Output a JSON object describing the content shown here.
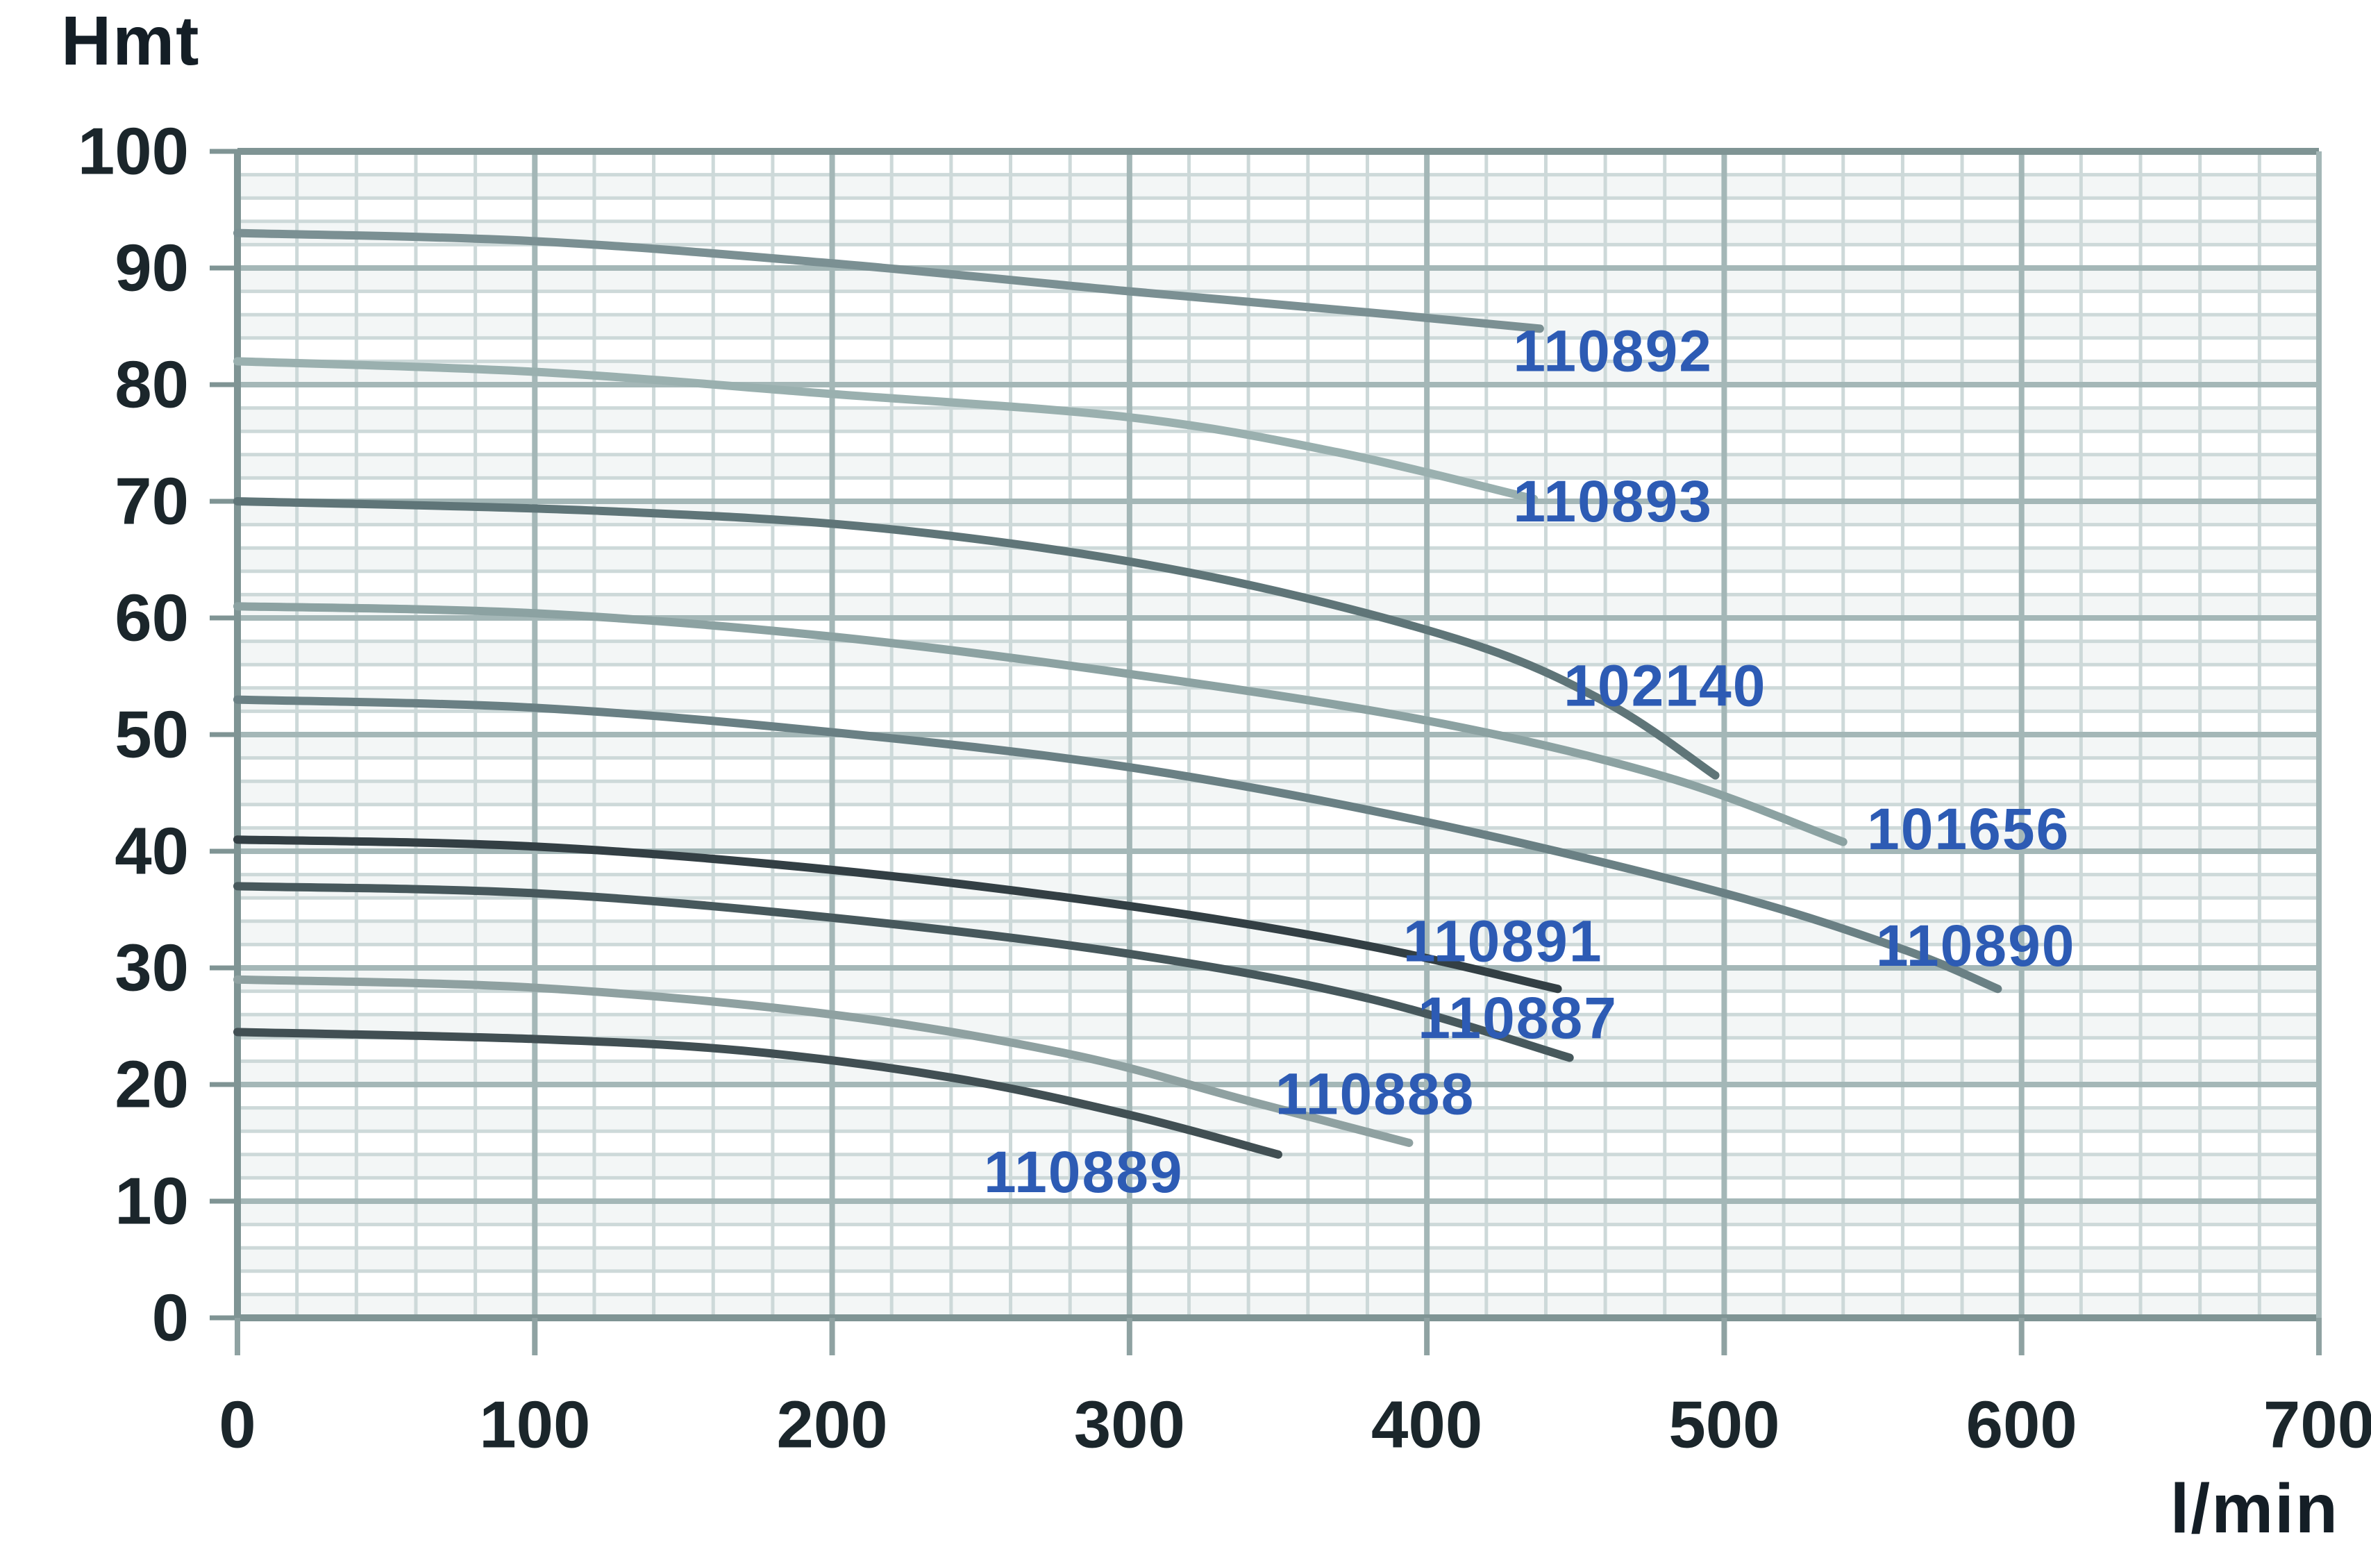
{
  "chart_data": {
    "type": "line",
    "title": "",
    "ylabel": "Hmt",
    "xlabel": "l/min",
    "x_range": [
      0,
      700
    ],
    "y_range": [
      0,
      100
    ],
    "x_ticks": [
      0,
      100,
      200,
      300,
      400,
      500,
      600,
      700
    ],
    "y_ticks": [
      0,
      10,
      20,
      30,
      40,
      50,
      60,
      70,
      80,
      90,
      100
    ],
    "x_minor_step": 20,
    "y_minor_step": 2,
    "grid": "on",
    "legend_position": "inline-labels-on-curves",
    "label_color": "#2d5bb4",
    "series": [
      {
        "name": "110892",
        "color": "#7b9093",
        "points": [
          [
            0,
            93
          ],
          [
            100,
            92.3
          ],
          [
            200,
            90.4
          ],
          [
            300,
            88.0
          ],
          [
            380,
            86.2
          ],
          [
            438,
            84.8
          ]
        ],
        "label_pos": [
          429,
          82.9
        ]
      },
      {
        "name": "110893",
        "color": "#9ab0af",
        "points": [
          [
            0,
            82
          ],
          [
            100,
            81.1
          ],
          [
            200,
            79.2
          ],
          [
            300,
            77.2
          ],
          [
            370,
            74.2
          ],
          [
            436,
            70.2
          ]
        ],
        "label_pos": [
          429,
          70.0
        ]
      },
      {
        "name": "102140",
        "color": "#5f7578",
        "points": [
          [
            0,
            70
          ],
          [
            120,
            69.2
          ],
          [
            220,
            67.6
          ],
          [
            320,
            63.9
          ],
          [
            410,
            58.2
          ],
          [
            460,
            52.8
          ],
          [
            497,
            46.5
          ]
        ],
        "label_pos": [
          446,
          54.2
        ]
      },
      {
        "name": "101656",
        "color": "#8ca2a2",
        "points": [
          [
            0,
            61
          ],
          [
            100,
            60.4
          ],
          [
            200,
            58.4
          ],
          [
            300,
            55.2
          ],
          [
            400,
            51.2
          ],
          [
            480,
            46.4
          ],
          [
            540,
            40.8
          ]
        ],
        "label_pos": [
          548,
          41.9
        ]
      },
      {
        "name": "110890",
        "color": "#6a8084",
        "points": [
          [
            0,
            53
          ],
          [
            100,
            52.3
          ],
          [
            200,
            50.2
          ],
          [
            300,
            47.2
          ],
          [
            400,
            42.5
          ],
          [
            500,
            36.4
          ],
          [
            560,
            31.6
          ],
          [
            592,
            28.2
          ]
        ],
        "label_pos": [
          551,
          31.9
        ]
      },
      {
        "name": "110891",
        "color": "#333f44",
        "points": [
          [
            0,
            41
          ],
          [
            100,
            40.4
          ],
          [
            200,
            38.4
          ],
          [
            300,
            35.3
          ],
          [
            380,
            31.9
          ],
          [
            444,
            28.2
          ]
        ],
        "label_pos": [
          392,
          32.3
        ]
      },
      {
        "name": "110887",
        "color": "#47585c",
        "points": [
          [
            0,
            37
          ],
          [
            100,
            36.4
          ],
          [
            200,
            34.3
          ],
          [
            300,
            31.2
          ],
          [
            380,
            27.4
          ],
          [
            448,
            22.3
          ]
        ],
        "label_pos": [
          397,
          25.7
        ]
      },
      {
        "name": "110888",
        "color": "#8fa1a1",
        "points": [
          [
            0,
            29
          ],
          [
            100,
            28.3
          ],
          [
            200,
            26.0
          ],
          [
            280,
            22.6
          ],
          [
            340,
            18.6
          ],
          [
            394,
            15.0
          ]
        ],
        "label_pos": [
          349,
          19.2
        ]
      },
      {
        "name": "110889",
        "color": "#414f53",
        "points": [
          [
            0,
            24.5
          ],
          [
            100,
            23.9
          ],
          [
            170,
            22.9
          ],
          [
            240,
            20.6
          ],
          [
            300,
            17.4
          ],
          [
            350,
            14.0
          ]
        ],
        "label_pos": [
          251,
          12.5
        ]
      }
    ]
  },
  "style": {
    "frame_color": "#7f9494",
    "grid_major_color": "#a4b7b7",
    "grid_minor_color": "#cdd9d9",
    "band_color": "#f3f6f6",
    "tick_color": "#8fa2a2",
    "tick_label_color": "#1b262b",
    "curve_label_color": "#2d5bb4"
  }
}
